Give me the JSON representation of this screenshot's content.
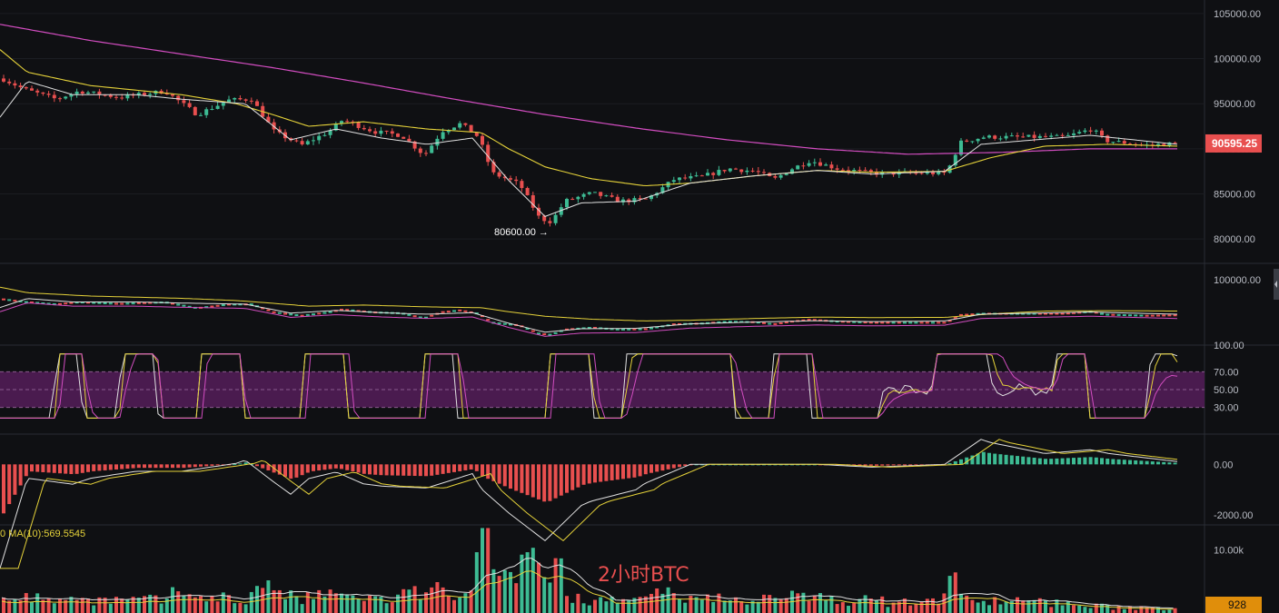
{
  "chart_data": [
    {
      "pane": "price",
      "type": "candlestick",
      "y_ticks": [
        "105000.00",
        "100000.00",
        "95000.00",
        "90000.00",
        "85000.00",
        "80000.00"
      ],
      "ylim": [
        77300,
        106500
      ],
      "anchor_points": [
        [
          0,
          97800
        ],
        [
          25,
          96600
        ],
        [
          60,
          95500
        ],
        [
          85,
          96400
        ],
        [
          130,
          95700
        ],
        [
          180,
          96400
        ],
        [
          215,
          93800
        ],
        [
          250,
          95400
        ],
        [
          275,
          95500
        ],
        [
          300,
          91900
        ],
        [
          330,
          90400
        ],
        [
          360,
          91900
        ],
        [
          375,
          93200
        ],
        [
          410,
          91900
        ],
        [
          440,
          91500
        ],
        [
          465,
          89300
        ],
        [
          485,
          92000
        ],
        [
          505,
          92800
        ],
        [
          525,
          91300
        ],
        [
          540,
          87300
        ],
        [
          570,
          86100
        ],
        [
          592,
          82300
        ],
        [
          605,
          81900
        ],
        [
          620,
          84200
        ],
        [
          650,
          85100
        ],
        [
          680,
          84200
        ],
        [
          710,
          84400
        ],
        [
          740,
          86600
        ],
        [
          770,
          86900
        ],
        [
          800,
          87800
        ],
        [
          830,
          87500
        ],
        [
          850,
          86600
        ],
        [
          870,
          87800
        ],
        [
          890,
          88700
        ],
        [
          920,
          87800
        ],
        [
          960,
          87300
        ],
        [
          1000,
          87300
        ],
        [
          1040,
          87300
        ],
        [
          1055,
          90700
        ],
        [
          1080,
          91300
        ],
        [
          1130,
          91300
        ],
        [
          1170,
          91300
        ],
        [
          1200,
          92200
        ],
        [
          1215,
          90900
        ],
        [
          1260,
          90400
        ],
        [
          1296,
          90600
        ]
      ],
      "ma_white_points": [
        [
          0,
          93500
        ],
        [
          30,
          97500
        ],
        [
          80,
          96000
        ],
        [
          150,
          96000
        ],
        [
          200,
          95500
        ],
        [
          270,
          95000
        ],
        [
          320,
          91000
        ],
        [
          370,
          92200
        ],
        [
          420,
          91200
        ],
        [
          470,
          90500
        ],
        [
          520,
          91200
        ],
        [
          560,
          86500
        ],
        [
          600,
          82500
        ],
        [
          640,
          84000
        ],
        [
          700,
          84200
        ],
        [
          760,
          86200
        ],
        [
          830,
          87000
        ],
        [
          900,
          87600
        ],
        [
          960,
          87200
        ],
        [
          1040,
          87500
        ],
        [
          1080,
          90500
        ],
        [
          1140,
          91000
        ],
        [
          1200,
          91500
        ],
        [
          1296,
          90500
        ]
      ],
      "ma_yellow_points": [
        [
          0,
          101000
        ],
        [
          30,
          98500
        ],
        [
          100,
          97000
        ],
        [
          200,
          96000
        ],
        [
          260,
          95000
        ],
        [
          300,
          93800
        ],
        [
          340,
          92500
        ],
        [
          400,
          93000
        ],
        [
          470,
          92200
        ],
        [
          530,
          91800
        ],
        [
          560,
          90000
        ],
        [
          600,
          88000
        ],
        [
          650,
          86700
        ],
        [
          710,
          85900
        ],
        [
          760,
          86200
        ],
        [
          830,
          87000
        ],
        [
          900,
          87600
        ],
        [
          960,
          87400
        ],
        [
          1040,
          87500
        ],
        [
          1090,
          89000
        ],
        [
          1150,
          90300
        ],
        [
          1220,
          90500
        ],
        [
          1296,
          90300
        ]
      ],
      "ma_pink_points": [
        [
          0,
          103800
        ],
        [
          100,
          102000
        ],
        [
          200,
          100500
        ],
        [
          300,
          99000
        ],
        [
          400,
          97300
        ],
        [
          500,
          95500
        ],
        [
          600,
          93800
        ],
        [
          700,
          92300
        ],
        [
          800,
          91000
        ],
        [
          900,
          90000
        ],
        [
          1000,
          89400
        ],
        [
          1100,
          89600
        ],
        [
          1200,
          90000
        ],
        [
          1296,
          90000
        ]
      ],
      "low_annotation": {
        "text": "80600.00 →",
        "value": 80600
      },
      "price_tag": {
        "text": "90595.25",
        "value": 90595.25,
        "color": "#e84f4f"
      }
    },
    {
      "pane": "bands",
      "type": "line",
      "y_ticks": [
        "100000.00"
      ],
      "ylim": [
        60000,
        110000
      ]
    },
    {
      "pane": "rsi",
      "type": "line",
      "y_ticks": [
        "100.00",
        "70.00",
        "50.00",
        "30.00"
      ],
      "ylim": [
        0,
        100
      ],
      "band": [
        30,
        70
      ],
      "band_color": "#4a1b4f"
    },
    {
      "pane": "macd",
      "type": "bar",
      "y_ticks": [
        "0.00",
        "-2000.00"
      ],
      "ylim": [
        -2400,
        1200
      ]
    },
    {
      "pane": "volume",
      "type": "bar",
      "y_ticks": [
        "10.00k"
      ],
      "ylim": [
        0,
        14000
      ],
      "legend_text": "0  MA(10):569.5545",
      "overlay_text": "2小时BTC",
      "volume_tag": {
        "text": "928",
        "value": 928,
        "color": "#e08e0b"
      }
    }
  ],
  "colors": {
    "up": "#3dbb93",
    "down": "#e84f4f",
    "white_ma": "#e0e0e0",
    "yellow_ma": "#e5d23a",
    "pink_ma": "#d24dc0",
    "text": "#b9bcc4",
    "background": "#0f1013"
  }
}
